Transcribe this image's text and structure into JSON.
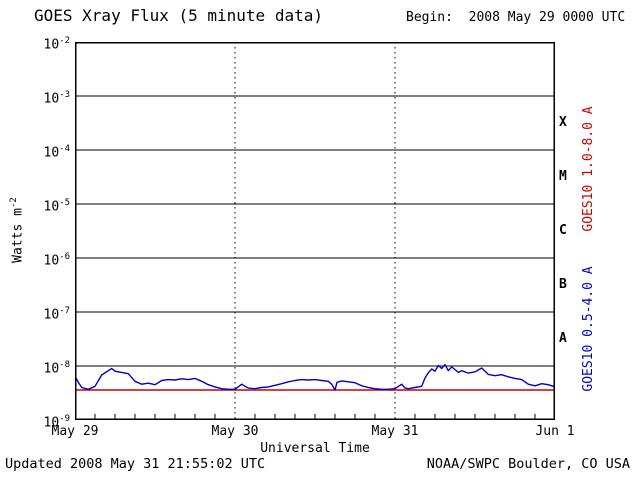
{
  "header": {
    "title": "GOES Xray Flux (5 minute data)",
    "begin": "Begin:  2008 May 29 0000 UTC"
  },
  "footer": {
    "updated": "Updated 2008 May 31 21:55:02 UTC",
    "source": "NOAA/SWPC Boulder, CO USA"
  },
  "yaxis": {
    "title": {
      "base": "Watts m",
      "exp": "-2"
    },
    "ticks": [
      {
        "base": "10",
        "exp": "-2"
      },
      {
        "base": "10",
        "exp": "-3"
      },
      {
        "base": "10",
        "exp": "-4"
      },
      {
        "base": "10",
        "exp": "-5"
      },
      {
        "base": "10",
        "exp": "-6"
      },
      {
        "base": "10",
        "exp": "-7"
      },
      {
        "base": "10",
        "exp": "-8"
      },
      {
        "base": "10",
        "exp": "-9"
      }
    ]
  },
  "xaxis": {
    "label": "Universal Time",
    "ticks": [
      "May 29",
      "May 30",
      "May 31",
      "Jun 1"
    ]
  },
  "flare_classes": [
    "X",
    "M",
    "C",
    "B",
    "A"
  ],
  "series_labels": {
    "red": "GOES10 1.0-8.0 A",
    "blue": "GOES10 0.5-4.0 A"
  },
  "colors": {
    "red": "#cc0000",
    "blue": "#0000cd",
    "axis": "#000000",
    "background": "#ffffff"
  },
  "chart_data": {
    "type": "line",
    "title": "GOES Xray Flux (5 minute data)",
    "xlabel": "Universal Time",
    "ylabel": "Watts m^-2",
    "x_tick_labels": [
      "May 29",
      "May 30",
      "May 31",
      "Jun 1"
    ],
    "x_hours_range": [
      0,
      72
    ],
    "day_gridlines_hours": [
      24,
      48
    ],
    "ylog_range": [
      -9,
      -2
    ],
    "ylim": [
      1e-09,
      0.01
    ],
    "legend_position": "right-rotated",
    "grid": "horizontal-solid-decades, vertical-dotted-day-boundaries",
    "series": [
      {
        "name": "GOES10 1.0-8.0 A",
        "color": "#cc0000",
        "x_hours": [
          0,
          72
        ],
        "values_wm2": [
          3.6e-09,
          3.6e-09
        ]
      },
      {
        "name": "GOES10 0.5-4.0 A",
        "color": "#0000cd",
        "x_hours": [
          0,
          0.5,
          1,
          2,
          3,
          4,
          5,
          5.5,
          6,
          7,
          8,
          9,
          10,
          11,
          12,
          13,
          14,
          15,
          16,
          17,
          18,
          19,
          20,
          21,
          22,
          23,
          24,
          25,
          25.5,
          26,
          27,
          28,
          29,
          30,
          31,
          32,
          33,
          34,
          35,
          36,
          37,
          38,
          38.5,
          39,
          39.3,
          40,
          41,
          42,
          43,
          44,
          45,
          46,
          47,
          48,
          49,
          49.5,
          50,
          51,
          52,
          52.5,
          53,
          53.5,
          54,
          54.5,
          55,
          55.5,
          56,
          56.5,
          57,
          57.5,
          58,
          59,
          60,
          61,
          61.5,
          62,
          63,
          64,
          65,
          66,
          67,
          68,
          69,
          70,
          71,
          72
        ],
        "values_wm2": [
          6.5e-09,
          5e-09,
          4e-09,
          3.7e-09,
          4.2e-09,
          6.8e-09,
          8.2e-09,
          9e-09,
          8e-09,
          7.6e-09,
          7.2e-09,
          5.2e-09,
          4.6e-09,
          4.8e-09,
          4.5e-09,
          5.4e-09,
          5.6e-09,
          5.5e-09,
          5.8e-09,
          5.6e-09,
          5.9e-09,
          5.2e-09,
          4.5e-09,
          4.1e-09,
          3.8e-09,
          3.7e-09,
          3.7e-09,
          4.6e-09,
          4.2e-09,
          3.9e-09,
          3.8e-09,
          4e-09,
          4.1e-09,
          4.4e-09,
          4.7e-09,
          5.1e-09,
          5.4e-09,
          5.6e-09,
          5.5e-09,
          5.6e-09,
          5.4e-09,
          5.2e-09,
          4.6e-09,
          3.6e-09,
          5e-09,
          5.3e-09,
          5.1e-09,
          4.9e-09,
          4.3e-09,
          4e-09,
          3.8e-09,
          3.7e-09,
          3.7e-09,
          3.8e-09,
          4.6e-09,
          3.9e-09,
          3.8e-09,
          4e-09,
          4.2e-09,
          6e-09,
          7.5e-09,
          8.8e-09,
          8e-09,
          1.02e-08,
          9e-09,
          1.06e-08,
          8.2e-09,
          9.6e-09,
          8.6e-09,
          7.6e-09,
          8.2e-09,
          7.4e-09,
          7.8e-09,
          9.2e-09,
          8e-09,
          7e-09,
          6.6e-09,
          6.9e-09,
          6.3e-09,
          5.9e-09,
          5.6e-09,
          4.6e-09,
          4.3e-09,
          4.7e-09,
          4.5e-09,
          4.1e-09
        ]
      }
    ]
  }
}
